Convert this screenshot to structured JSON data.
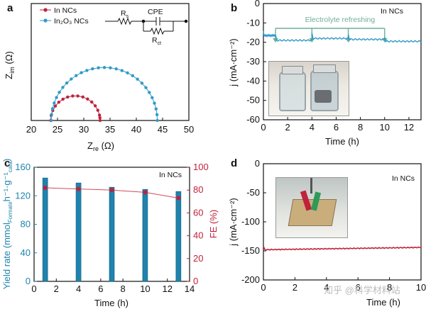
{
  "panels": {
    "a": {
      "letter": "a"
    },
    "b": {
      "letter": "b"
    },
    "c": {
      "letter": "c"
    },
    "d": {
      "letter": "d"
    }
  },
  "watermark": {
    "text": "知乎 @科学材料站"
  },
  "colors": {
    "red": "#c0213b",
    "blue": "#2f9bc8",
    "green": "#6fae9c",
    "bar": "#1f83ad",
    "fe_line": "#d04b59"
  },
  "chart_data": [
    {
      "id": "a",
      "type": "scatter",
      "xlabel": "Z",
      "xlabel_sub": "re",
      "xlabel_unit": " (Ω)",
      "ylabel": "Z",
      "ylabel_sub": "im",
      "ylabel_unit": " (Ω)",
      "xlim": [
        20,
        50
      ],
      "xticks": [
        "20",
        "25",
        "30",
        "35",
        "40",
        "45",
        "50"
      ],
      "legend": [
        "In NCs",
        "In₂O₃ NCs"
      ],
      "legend_placement": "top-left",
      "circuit": {
        "rs": "R",
        "rs_sub": "s",
        "cpe": "CPE",
        "rct": "R",
        "rct_sub": "ct"
      },
      "series": [
        {
          "name": "In NCs",
          "color": "red",
          "center": 28.4,
          "radius": 4.7
        },
        {
          "name": "In₂O₃ NCs",
          "color": "blue",
          "center": 33.9,
          "radius": 10.1
        }
      ]
    },
    {
      "id": "b",
      "type": "line",
      "xlabel": "Time (h)",
      "ylabel": "j (mA·cm⁻²)",
      "xlim": [
        0,
        13
      ],
      "ylim": [
        -60,
        0
      ],
      "xticks": [
        "0",
        "2",
        "4",
        "6",
        "8",
        "10",
        "12"
      ],
      "yticks": [
        "0",
        "-10",
        "-20",
        "-30",
        "-40",
        "-50",
        "-60"
      ],
      "annotation": "Electrolyte refreshing",
      "refresh_times": [
        1,
        4,
        7,
        10
      ],
      "label": "In NCs",
      "segments": [
        [
          0,
          1,
          -16.5
        ],
        [
          1,
          4,
          -19
        ],
        [
          4,
          7,
          -18
        ],
        [
          7,
          10,
          -18.5
        ],
        [
          10,
          13,
          -19.5
        ]
      ]
    },
    {
      "id": "c",
      "type": "bar",
      "xlabel": "Time (h)",
      "ylabel": "Yield rate (mmol",
      "ylabel_sub": "Formate",
      "ylabel_rest": "h⁻¹·g⁻¹",
      "ylabel_sub2": "cata",
      "ylabel_end": ")",
      "y2label": "FE (%)",
      "label": "In NCs",
      "xlim": [
        0,
        14
      ],
      "ylim": [
        0,
        160
      ],
      "y2lim": [
        0,
        100
      ],
      "xticks": [
        "0",
        "2",
        "4",
        "6",
        "8",
        "10",
        "12",
        "14"
      ],
      "yticks": [
        "0",
        "40",
        "80",
        "120",
        "160"
      ],
      "y2ticks": [
        "0",
        "20",
        "40",
        "60",
        "80",
        "100"
      ],
      "categories": [
        1,
        4,
        7,
        10,
        13
      ],
      "values": [
        145,
        138,
        132,
        129,
        126
      ],
      "fe": [
        82,
        81,
        80,
        78,
        73
      ]
    },
    {
      "id": "d",
      "type": "line",
      "xlabel": "Time (h)",
      "ylabel": "j (mA·cm⁻²)",
      "label": "In NCs",
      "xlim": [
        0,
        10
      ],
      "ylim": [
        -200,
        0
      ],
      "xticks": [
        "0",
        "2",
        "4",
        "6",
        "8",
        "10"
      ],
      "yticks": [
        "0",
        "-50",
        "-100",
        "-150",
        "-200"
      ],
      "start": -148,
      "end": -144
    }
  ]
}
